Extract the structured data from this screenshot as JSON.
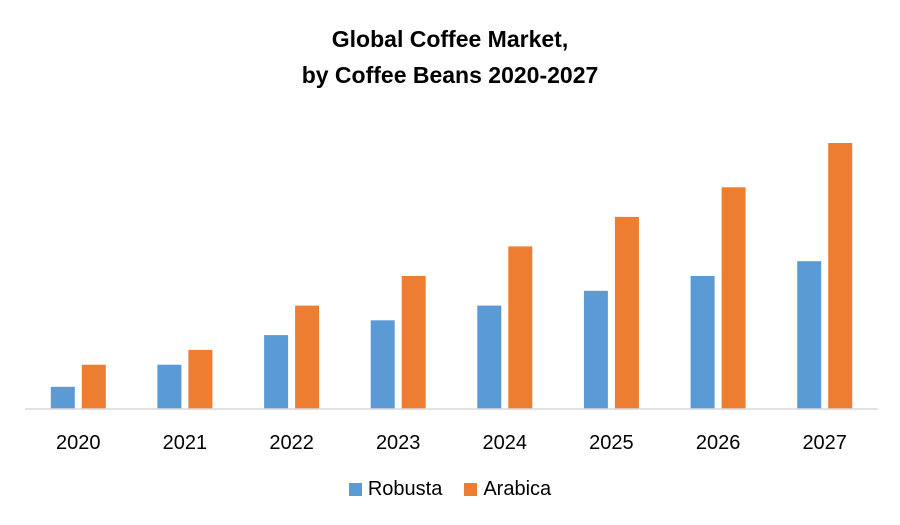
{
  "chart_data": {
    "type": "bar",
    "title_line1": "Global Coffee Market,",
    "title_line2": "by Coffee Beans  2020-2027",
    "categories": [
      "2020",
      "2021",
      "2022",
      "2023",
      "2024",
      "2025",
      "2026",
      "2027"
    ],
    "series": [
      {
        "name": "Robusta",
        "color": "#5B9BD5",
        "values": [
          1.5,
          3,
          5,
          6,
          7,
          8,
          9,
          10
        ]
      },
      {
        "name": "Arabica",
        "color": "#ED7D31",
        "values": [
          3,
          4,
          7,
          9,
          11,
          13,
          15,
          18
        ]
      }
    ],
    "ylim": [
      0,
      18
    ],
    "grid": false,
    "legend_position": "bottom"
  }
}
